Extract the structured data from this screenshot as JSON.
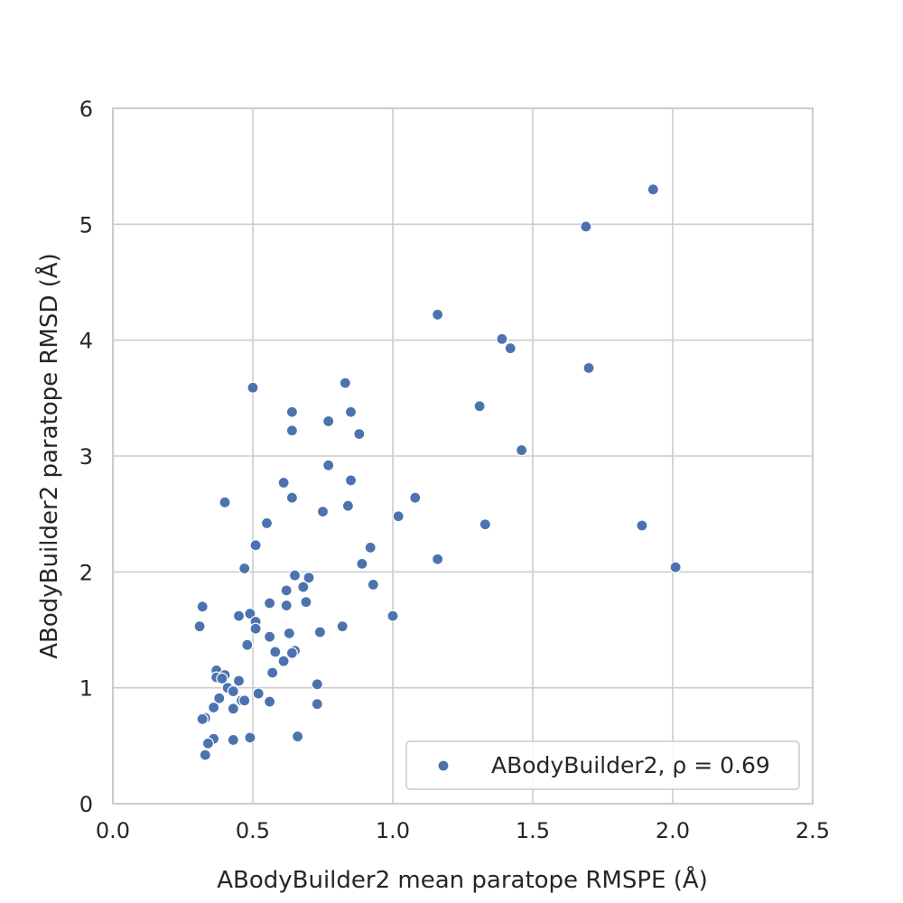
{
  "chart_data": {
    "type": "scatter",
    "xlabel": "ABodyBuilder2 mean paratope RMSPE (Å)",
    "ylabel": "ABodyBuilder2 paratope RMSD (Å)",
    "xlim": [
      0.0,
      2.5
    ],
    "ylim": [
      0,
      6
    ],
    "x_ticks": [
      "0.0",
      "0.5",
      "1.0",
      "1.5",
      "2.0",
      "2.5"
    ],
    "y_ticks": [
      "0",
      "1",
      "2",
      "3",
      "4",
      "5",
      "6"
    ],
    "grid": true,
    "legend_position": "lower-right",
    "colors": {
      "series": "#4c72b0",
      "grid": "#cccccc",
      "text": "#262626"
    },
    "series": [
      {
        "name": "ABodyBuilder2, ρ = 0.69",
        "legend_label": "ABodyBuilder2, ρ = 0.69",
        "points": [
          {
            "x": 1.93,
            "y": 5.3
          },
          {
            "x": 1.69,
            "y": 4.98
          },
          {
            "x": 1.16,
            "y": 4.22
          },
          {
            "x": 1.39,
            "y": 4.01
          },
          {
            "x": 1.42,
            "y": 3.93
          },
          {
            "x": 1.7,
            "y": 3.76
          },
          {
            "x": 1.31,
            "y": 3.43
          },
          {
            "x": 1.46,
            "y": 3.05
          },
          {
            "x": 1.08,
            "y": 2.64
          },
          {
            "x": 1.02,
            "y": 2.48
          },
          {
            "x": 1.33,
            "y": 2.41
          },
          {
            "x": 1.89,
            "y": 2.4
          },
          {
            "x": 1.16,
            "y": 2.11
          },
          {
            "x": 2.01,
            "y": 2.04
          },
          {
            "x": 1.0,
            "y": 1.62
          },
          {
            "x": 0.5,
            "y": 3.59
          },
          {
            "x": 0.83,
            "y": 3.63
          },
          {
            "x": 0.64,
            "y": 3.38
          },
          {
            "x": 0.85,
            "y": 3.38
          },
          {
            "x": 0.77,
            "y": 3.3
          },
          {
            "x": 0.64,
            "y": 3.22
          },
          {
            "x": 0.88,
            "y": 3.19
          },
          {
            "x": 0.77,
            "y": 2.92
          },
          {
            "x": 0.85,
            "y": 2.79
          },
          {
            "x": 0.61,
            "y": 2.77
          },
          {
            "x": 0.64,
            "y": 2.64
          },
          {
            "x": 0.4,
            "y": 2.6
          },
          {
            "x": 0.84,
            "y": 2.57
          },
          {
            "x": 0.75,
            "y": 2.52
          },
          {
            "x": 0.55,
            "y": 2.42
          },
          {
            "x": 0.51,
            "y": 2.23
          },
          {
            "x": 0.92,
            "y": 2.21
          },
          {
            "x": 0.89,
            "y": 2.07
          },
          {
            "x": 0.47,
            "y": 2.03
          },
          {
            "x": 0.65,
            "y": 1.97
          },
          {
            "x": 0.7,
            "y": 1.95
          },
          {
            "x": 0.93,
            "y": 1.89
          },
          {
            "x": 0.68,
            "y": 1.87
          },
          {
            "x": 0.62,
            "y": 1.84
          },
          {
            "x": 0.69,
            "y": 1.74
          },
          {
            "x": 0.56,
            "y": 1.73
          },
          {
            "x": 0.62,
            "y": 1.71
          },
          {
            "x": 0.32,
            "y": 1.7
          },
          {
            "x": 0.49,
            "y": 1.64
          },
          {
            "x": 0.45,
            "y": 1.62
          },
          {
            "x": 0.51,
            "y": 1.57
          },
          {
            "x": 0.31,
            "y": 1.53
          },
          {
            "x": 0.82,
            "y": 1.53
          },
          {
            "x": 0.51,
            "y": 1.51
          },
          {
            "x": 0.74,
            "y": 1.48
          },
          {
            "x": 0.63,
            "y": 1.47
          },
          {
            "x": 0.56,
            "y": 1.44
          },
          {
            "x": 0.48,
            "y": 1.37
          },
          {
            "x": 0.65,
            "y": 1.32
          },
          {
            "x": 0.58,
            "y": 1.31
          },
          {
            "x": 0.64,
            "y": 1.3
          },
          {
            "x": 0.61,
            "y": 1.23
          },
          {
            "x": 0.37,
            "y": 1.15
          },
          {
            "x": 0.57,
            "y": 1.13
          },
          {
            "x": 0.4,
            "y": 1.11
          },
          {
            "x": 0.37,
            "y": 1.09
          },
          {
            "x": 0.39,
            "y": 1.08
          },
          {
            "x": 0.45,
            "y": 1.06
          },
          {
            "x": 0.73,
            "y": 1.03
          },
          {
            "x": 0.41,
            "y": 1.0
          },
          {
            "x": 0.43,
            "y": 0.97
          },
          {
            "x": 0.52,
            "y": 0.95
          },
          {
            "x": 0.38,
            "y": 0.91
          },
          {
            "x": 0.46,
            "y": 0.89
          },
          {
            "x": 0.47,
            "y": 0.89
          },
          {
            "x": 0.56,
            "y": 0.88
          },
          {
            "x": 0.73,
            "y": 0.86
          },
          {
            "x": 0.36,
            "y": 0.83
          },
          {
            "x": 0.43,
            "y": 0.82
          },
          {
            "x": 0.33,
            "y": 0.74
          },
          {
            "x": 0.32,
            "y": 0.73
          },
          {
            "x": 0.66,
            "y": 0.58
          },
          {
            "x": 0.49,
            "y": 0.57
          },
          {
            "x": 0.36,
            "y": 0.56
          },
          {
            "x": 0.43,
            "y": 0.55
          },
          {
            "x": 0.34,
            "y": 0.52
          },
          {
            "x": 0.33,
            "y": 0.42
          }
        ]
      }
    ]
  }
}
